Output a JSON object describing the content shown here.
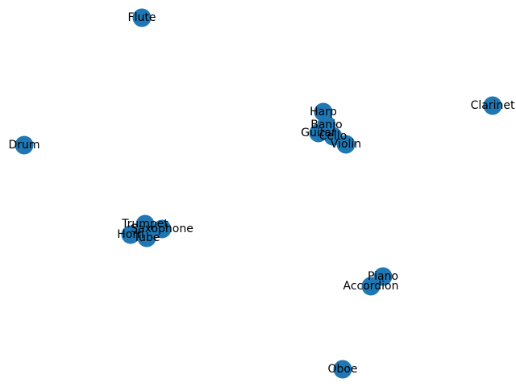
{
  "graph": {
    "node_color": "#1f77b4",
    "label_color": "#000000",
    "nodes": [
      {
        "id": "flute",
        "label": "Flute"
      },
      {
        "id": "drum",
        "label": "Drum"
      },
      {
        "id": "harp",
        "label": "Harp"
      },
      {
        "id": "banjo",
        "label": "Banjo"
      },
      {
        "id": "guitar",
        "label": "Guitar"
      },
      {
        "id": "cello",
        "label": "Cello"
      },
      {
        "id": "violin",
        "label": "Violin"
      },
      {
        "id": "clarinet",
        "label": "Clarinet"
      },
      {
        "id": "trumpet",
        "label": "Trumpet"
      },
      {
        "id": "saxophone",
        "label": "Saxophone"
      },
      {
        "id": "horn",
        "label": "Horn"
      },
      {
        "id": "tube",
        "label": "Tube"
      },
      {
        "id": "piano",
        "label": "Piano"
      },
      {
        "id": "accordion",
        "label": "Accordion"
      },
      {
        "id": "oboe",
        "label": "Oboe"
      }
    ],
    "edges": []
  }
}
